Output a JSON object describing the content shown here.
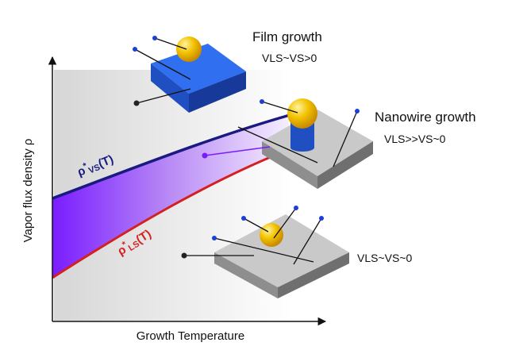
{
  "axes": {
    "y_label": "Vapor flux density ρ",
    "x_label": "Growth Temperature"
  },
  "curves": [
    {
      "symbol": "ρ",
      "sup": "*",
      "sub": "VS",
      "arg": "(T)"
    },
    {
      "symbol": "ρ",
      "sup": "*",
      "sub": "LS",
      "arg": "(T)"
    }
  ],
  "regimes": [
    {
      "title": "Film growth",
      "condition": "VLS~VS>0"
    },
    {
      "title": "Nanowire growth",
      "condition": "VLS>>VS~0"
    },
    {
      "condition": "VLS~VS~0"
    }
  ]
}
